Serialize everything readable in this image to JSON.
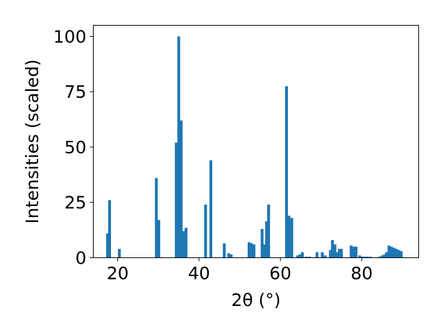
{
  "chart_data": {
    "type": "bar",
    "xlabel": "2θ (°)",
    "ylabel": "Intensities (scaled)",
    "xlim": [
      14,
      94
    ],
    "ylim": [
      0,
      105
    ],
    "xticks": [
      20,
      40,
      60,
      80
    ],
    "yticks": [
      0,
      25,
      50,
      75,
      100
    ],
    "bar_width": 0.7,
    "color": "#1f77b4",
    "grid": false,
    "x": [
      17.5,
      18.0,
      20.4,
      29.5,
      30.1,
      34.4,
      35.0,
      35.6,
      36.2,
      36.8,
      41.6,
      42.9,
      46.2,
      47.3,
      47.9,
      52.3,
      52.9,
      53.5,
      55.5,
      56.0,
      56.6,
      57.1,
      61.5,
      62.1,
      62.8,
      64.2,
      64.8,
      65.4,
      66.3,
      67.1,
      69.0,
      70.3,
      71.0,
      72.3,
      72.8,
      73.4,
      73.9,
      74.5,
      75.0,
      77.4,
      78.0,
      78.6,
      79.5,
      80.1,
      80.7,
      81.3,
      82.1,
      84.4,
      85.0,
      85.6,
      86.1,
      86.7,
      87.3,
      87.9,
      88.5,
      89.1,
      89.7
    ],
    "values": [
      11,
      26,
      4,
      36,
      17,
      52,
      100,
      62,
      12,
      13.5,
      24,
      44,
      6.5,
      2,
      1.5,
      7,
      6.5,
      6,
      13,
      6,
      16.5,
      24,
      77.5,
      19,
      18,
      1,
      1.5,
      2.5,
      0.5,
      0.5,
      2.5,
      2.5,
      1,
      3.5,
      8,
      6,
      2.5,
      4,
      4,
      5.5,
      5,
      5,
      1,
      0.5,
      0.5,
      0.5,
      0.5,
      0.5,
      1,
      1.5,
      2.5,
      5.5,
      5,
      4.5,
      4,
      3.5,
      3
    ]
  }
}
